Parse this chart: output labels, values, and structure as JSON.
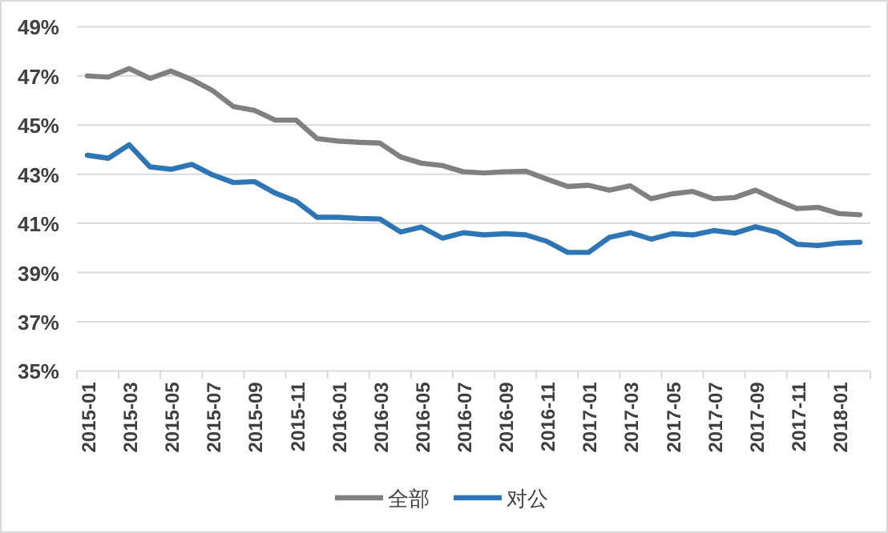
{
  "chart_data": {
    "type": "line",
    "categories": [
      "2015-01",
      null,
      "2015-03",
      null,
      "2015-05",
      null,
      "2015-07",
      null,
      "2015-09",
      null,
      "2015-11",
      null,
      "2016-01",
      null,
      "2016-03",
      null,
      "2016-05",
      null,
      "2016-07",
      null,
      "2016-09",
      null,
      "2016-11",
      null,
      "2017-01",
      null,
      "2017-03",
      null,
      "2017-05",
      null,
      "2017-07",
      null,
      "2017-09",
      null,
      "2017-11",
      null,
      "2018-01",
      null
    ],
    "series": [
      {
        "name": "全部",
        "color": "#808080",
        "values": [
          47.0,
          46.95,
          47.3,
          46.9,
          47.2,
          46.85,
          46.4,
          45.75,
          45.6,
          45.2,
          45.2,
          44.45,
          44.35,
          44.3,
          44.27,
          43.7,
          43.45,
          43.35,
          43.1,
          43.05,
          43.1,
          43.12,
          42.8,
          42.5,
          42.55,
          42.35,
          42.53,
          42.0,
          42.2,
          42.3,
          42.0,
          42.05,
          42.35,
          41.95,
          41.6,
          41.65,
          41.4,
          41.35
        ]
      },
      {
        "name": "对公",
        "color": "#2e75b6",
        "values": [
          43.77,
          43.65,
          44.2,
          43.3,
          43.2,
          43.4,
          42.97,
          42.66,
          42.7,
          42.23,
          41.9,
          41.25,
          41.25,
          41.2,
          41.18,
          40.65,
          40.85,
          40.4,
          40.62,
          40.53,
          40.58,
          40.53,
          40.27,
          39.82,
          39.82,
          40.43,
          40.62,
          40.36,
          40.58,
          40.53,
          40.71,
          40.6,
          40.86,
          40.65,
          40.15,
          40.1,
          40.2,
          40.23
        ]
      }
    ],
    "ylim": [
      35,
      49
    ],
    "yticks": [
      {
        "value": 35,
        "label": "35%"
      },
      {
        "value": 37,
        "label": "37%"
      },
      {
        "value": 39,
        "label": "39%"
      },
      {
        "value": 41,
        "label": "41%"
      },
      {
        "value": 43,
        "label": "43%"
      },
      {
        "value": 45,
        "label": "45%"
      },
      {
        "value": 47,
        "label": "47%"
      },
      {
        "value": 49,
        "label": "49%"
      }
    ],
    "grid": "y",
    "legend": "bottom",
    "marker": "none",
    "line_style": "solid"
  }
}
